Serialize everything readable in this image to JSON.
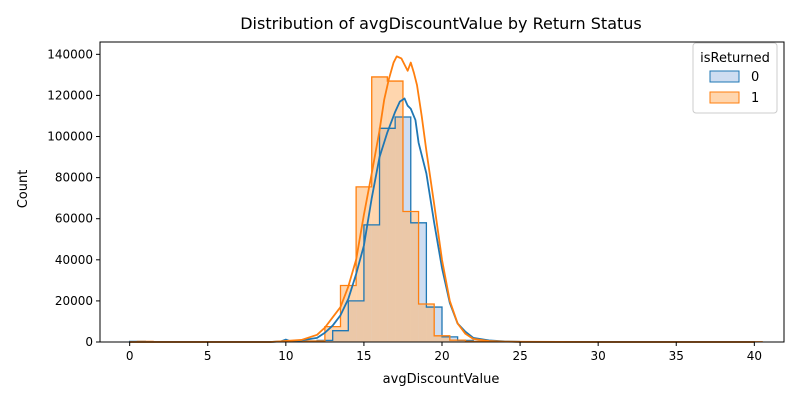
{
  "chart_data": {
    "type": "histogram",
    "title": "Distribution of avgDiscountValue by Return Status",
    "xlabel": "avgDiscountValue",
    "ylabel": "Count",
    "xlim": [
      -1.9,
      41.9
    ],
    "ylim": [
      0,
      146000
    ],
    "x_ticks": [
      0,
      5,
      10,
      15,
      20,
      25,
      30,
      35,
      40
    ],
    "y_ticks": [
      0,
      20000,
      40000,
      60000,
      80000,
      100000,
      120000,
      140000
    ],
    "legend": {
      "title": "isReturned",
      "position": "top-right"
    },
    "bin_edges": [
      0,
      1,
      2,
      3,
      4,
      5,
      6,
      7,
      8,
      9,
      10,
      11,
      12,
      13,
      14,
      15,
      16,
      17,
      18,
      19,
      20,
      21,
      22,
      23,
      24,
      25,
      26,
      27,
      28,
      29,
      30,
      31,
      32,
      33,
      34,
      35,
      36,
      37,
      38,
      39,
      40
    ],
    "series": [
      {
        "name": "0",
        "line_color": "#1f77b4",
        "fill_color": "#aec7e8",
        "counts": [
          300,
          200,
          100,
          100,
          100,
          100,
          100,
          100,
          100,
          100,
          500,
          500,
          800,
          5500,
          20000,
          57000,
          104000,
          109500,
          58000,
          17000,
          2500,
          800,
          300,
          200,
          100,
          100,
          100,
          100,
          100,
          100,
          100,
          100,
          100,
          100,
          100,
          100,
          100,
          100,
          100,
          100
        ],
        "kde_x": [
          0,
          5,
          9,
          9.7,
          10,
          10.3,
          11,
          12,
          12.5,
          13,
          13.5,
          14,
          14.5,
          15,
          15.5,
          16,
          16.5,
          17,
          17.3,
          17.6,
          17.8,
          18,
          18.3,
          18.5,
          19,
          19.5,
          20,
          20.5,
          21,
          21.5,
          22,
          23,
          24,
          25,
          30,
          35,
          40
        ],
        "kde_y": [
          0,
          0,
          0,
          300,
          1200,
          300,
          800,
          2000,
          4500,
          8000,
          13000,
          21000,
          33000,
          47000,
          70000,
          90000,
          102000,
          112000,
          117000,
          118500,
          115000,
          113500,
          108000,
          97000,
          82000,
          58000,
          36000,
          19000,
          9000,
          5000,
          2000,
          800,
          300,
          100,
          0,
          0,
          0
        ]
      },
      {
        "name": "1",
        "line_color": "#ff7f0e",
        "fill_color": "#ffbb78",
        "counts": [
          300,
          200,
          100,
          100,
          100,
          100,
          100,
          100,
          100,
          100,
          500,
          500,
          7500,
          27500,
          75500,
          129000,
          127000,
          63500,
          18500,
          3000,
          900,
          300,
          200,
          100,
          100,
          100,
          100,
          100,
          100,
          100,
          100,
          100,
          100,
          100,
          100,
          100,
          100,
          100,
          100,
          100
        ],
        "bin_offset": 0.5,
        "kde_x": [
          0,
          5,
          9,
          11,
          12,
          12.5,
          13,
          13.5,
          14,
          14.5,
          15,
          15.5,
          16,
          16.3,
          16.6,
          16.9,
          17.1,
          17.4,
          17.6,
          17.8,
          18,
          18.2,
          18.4,
          18.7,
          19,
          19.5,
          20,
          20.5,
          21,
          21.5,
          22,
          23,
          24,
          25,
          30,
          35,
          40
        ],
        "kde_y": [
          0,
          0,
          0,
          1000,
          3500,
          7000,
          12000,
          17000,
          27000,
          40000,
          62000,
          82000,
          103000,
          118000,
          128000,
          136000,
          139000,
          138000,
          135000,
          132000,
          136000,
          131000,
          125000,
          110000,
          93000,
          67000,
          40000,
          20000,
          9000,
          4000,
          1500,
          500,
          200,
          100,
          0,
          0,
          0
        ]
      }
    ]
  }
}
